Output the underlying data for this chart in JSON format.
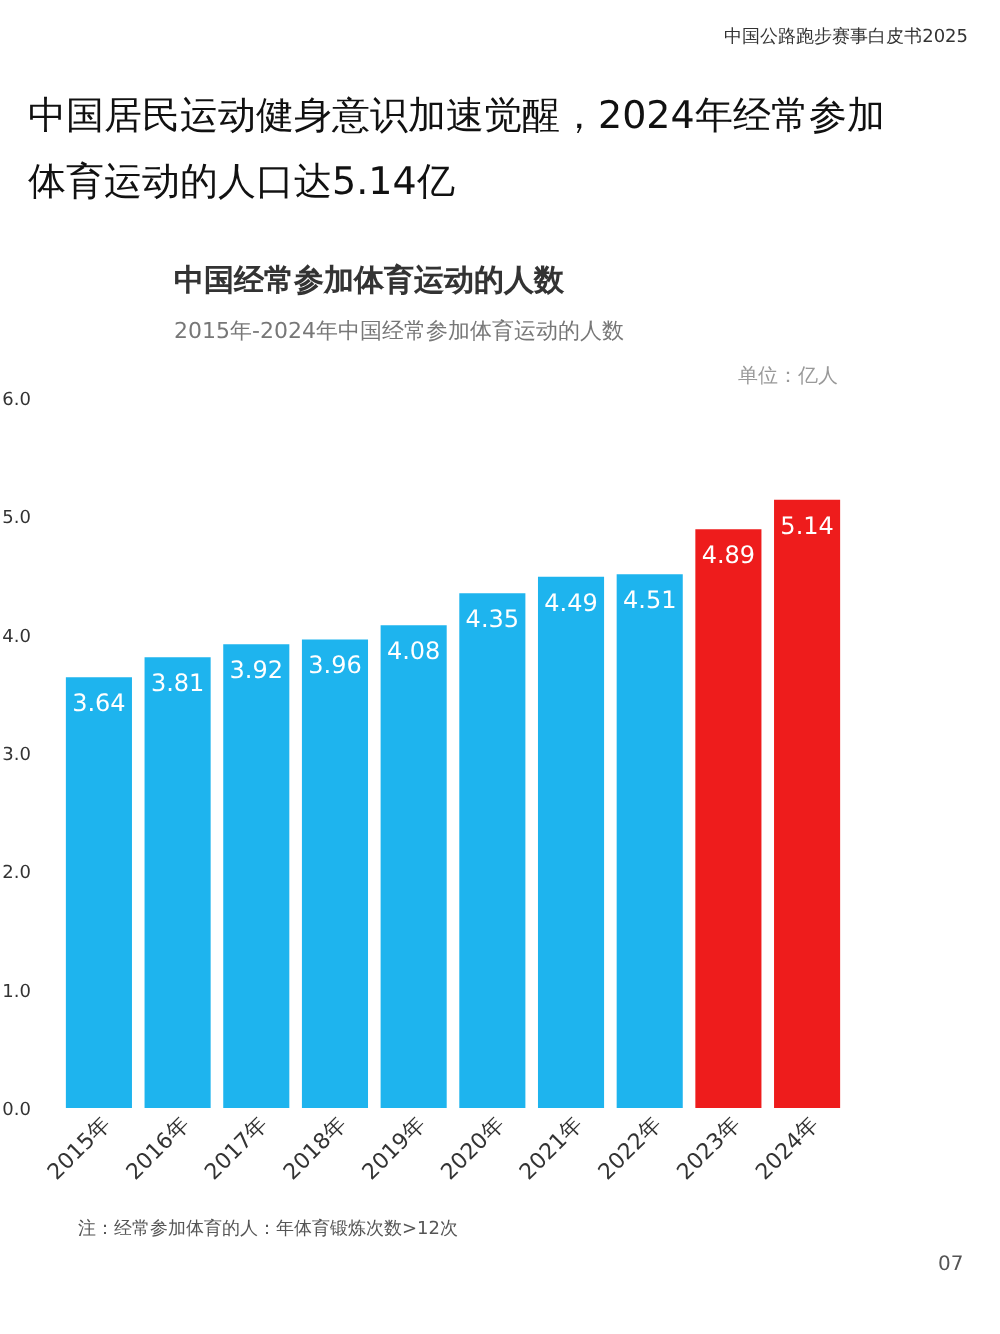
{
  "chart_data": {
    "type": "bar",
    "title": "中国居民运动健身意识加速觉醒，2024年经常参加体育运动的人口达5.14亿",
    "subtitle": "中国经常参加体育运动的人数",
    "annotations": [
      "中国公路跑步赛事白皮书2025",
      "2015年-2024年中国经常参加体育运动的人数",
      "单位：亿人",
      "注：经常参加体育的人：年体育锻炼次数>12次",
      "07"
    ],
    "categories": [
      "2015年",
      "2016年",
      "2017年",
      "2018年",
      "2019年",
      "2020年",
      "2021年",
      "2022年",
      "2023年",
      "2024年"
    ],
    "values": [
      3.64,
      3.81,
      3.92,
      3.96,
      4.08,
      4.35,
      4.49,
      4.51,
      4.89,
      5.14
    ],
    "colors": [
      "#1eb4ee",
      "#1eb4ee",
      "#1eb4ee",
      "#1eb4ee",
      "#1eb4ee",
      "#1eb4ee",
      "#1eb4ee",
      "#1eb4ee",
      "#ee1c1c",
      "#ee1c1c"
    ],
    "data_labels": true,
    "ylim": [
      0,
      6
    ],
    "yticks": [
      {
        "value": 0,
        "label": "0.0"
      },
      {
        "value": 1,
        "label": "1.0"
      },
      {
        "value": 2,
        "label": "2.0"
      },
      {
        "value": 3,
        "label": "3.0"
      },
      {
        "value": 4,
        "label": "4.0"
      },
      {
        "value": 5,
        "label": "5.0"
      },
      {
        "value": 6,
        "label": "6.0"
      }
    ],
    "grid": false
  }
}
